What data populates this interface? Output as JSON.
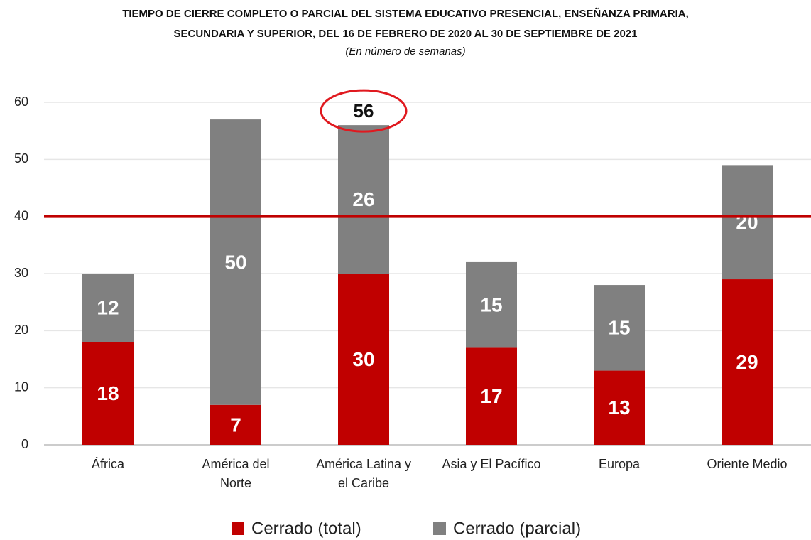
{
  "chart_data": {
    "type": "stacked_bar",
    "title": "TIEMPO DE CIERRE COMPLETO O PARCIAL DEL SISTEMA EDUCATIVO PRESENCIAL, ENSEÑANZA PRIMARIA,\nSECUNDARIA Y SUPERIOR, DEL 16 DE FEBRERO DE 2020 AL 30 DE SEPTIEMBRE DE 2021",
    "subtitle": "(En número de semanas)",
    "categories": [
      "África",
      "América del\nNorte",
      "América Latina y\nel Caribe",
      "Asia y El Pacífico",
      "Europa",
      "Oriente Medio"
    ],
    "series": [
      {
        "name": "Cerrado (total)",
        "color": "#c00000",
        "values": [
          18,
          7,
          30,
          17,
          13,
          29
        ]
      },
      {
        "name": "Cerrado (parcial)",
        "color": "#808080",
        "values": [
          12,
          50,
          26,
          15,
          15,
          20
        ]
      }
    ],
    "ylim": [
      0,
      60
    ],
    "yticks": [
      0,
      10,
      20,
      30,
      40,
      50,
      60
    ],
    "grid": true,
    "legend": "bottom",
    "reference_line": {
      "y": 40,
      "color": "#c00000"
    },
    "annotations": [
      {
        "text": "56",
        "x": "América Latina y\nel Caribe",
        "y": 56,
        "color": "#e0191f"
      }
    ]
  }
}
